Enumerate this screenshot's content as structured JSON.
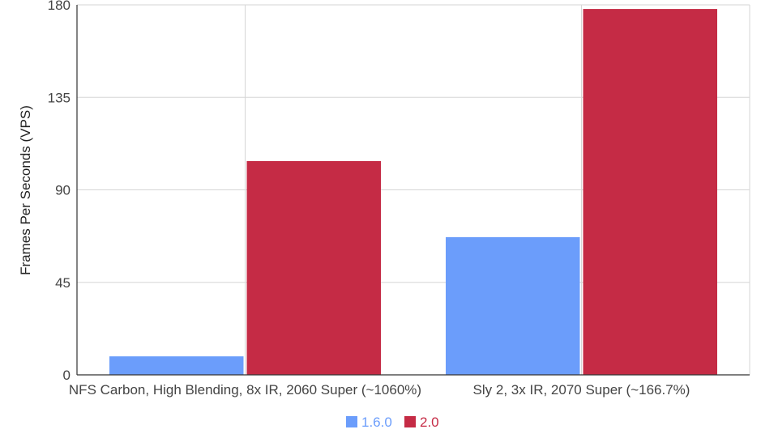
{
  "chart_data": {
    "type": "bar",
    "categories": [
      "NFS Carbon, High Blending, 8x IR, 2060 Super (~1060%)",
      "Sly 2, 3x IR, 2070 Super (~166.7%)"
    ],
    "series": [
      {
        "name": "1.6.0",
        "color": "#6b9dfb",
        "values": [
          9,
          67
        ]
      },
      {
        "name": "2.0",
        "color": "#c52b45",
        "values": [
          104,
          178
        ]
      }
    ],
    "title": "",
    "xlabel": "",
    "ylabel": "Frames Per Seconds (VPS)",
    "ylim": [
      0,
      180
    ],
    "yticks": [
      0,
      45,
      90,
      135,
      180
    ],
    "grid": true,
    "legend_position": "bottom"
  }
}
